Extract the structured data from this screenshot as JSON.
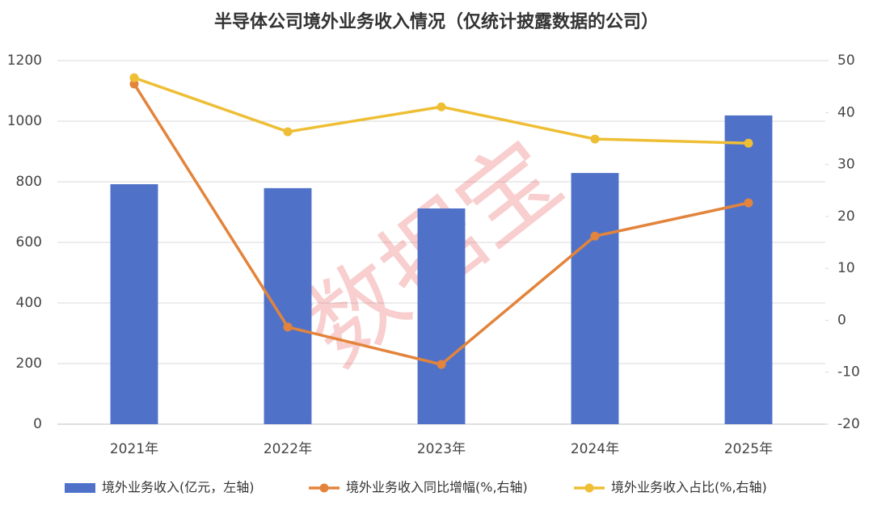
{
  "chart_data": {
    "type": "bar",
    "title": "半导体公司境外业务收入情况（仅统计披露数据的公司）",
    "categories": [
      "2021年",
      "2022年",
      "2023年",
      "2024年",
      "2025年"
    ],
    "series": [
      {
        "name": "境外业务收入(亿元，左轴)",
        "type": "bar",
        "color": "#4f72c8",
        "values": [
          792,
          779,
          712,
          829,
          1019
        ]
      },
      {
        "name": "境外业务收入同比增幅(%,右轴)",
        "type": "line",
        "axis": "y2",
        "color": "#e2843c",
        "values": [
          45.5,
          -1.3,
          -8.5,
          16.2,
          22.6
        ]
      },
      {
        "name": "境外业务收入占比(%,右轴)",
        "type": "line",
        "axis": "y2",
        "color": "#eebe35",
        "values": [
          46.7,
          36.3,
          41.1,
          34.9,
          34.1
        ]
      }
    ],
    "ylim": [
      0,
      1200
    ],
    "yticks": [
      0,
      200,
      400,
      600,
      800,
      1000,
      1200
    ],
    "y2lim": [
      -20,
      50
    ],
    "y2ticks": [
      -20,
      -10,
      0,
      10,
      20,
      30,
      40,
      50
    ],
    "grid": true,
    "legend": "bottom"
  },
  "watermark": "数据宝"
}
